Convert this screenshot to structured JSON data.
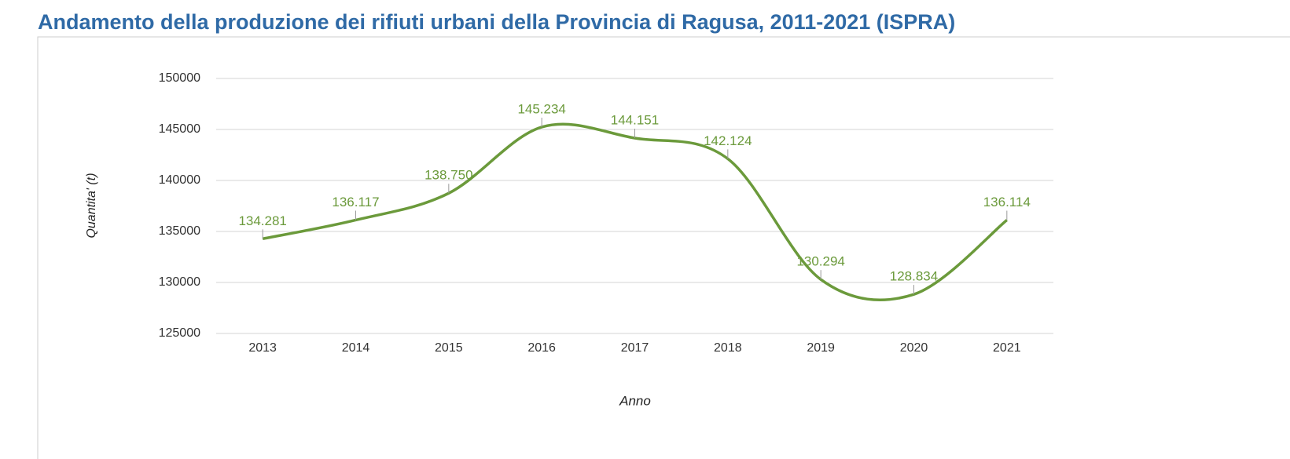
{
  "chart_data": {
    "type": "line",
    "title": "Andamento della produzione dei rifiuti urbani della Provincia di Ragusa, 2011-2021 (ISPRA)",
    "xlabel": "Anno",
    "ylabel": "Quantita' (t)",
    "categories": [
      "2013",
      "2014",
      "2015",
      "2016",
      "2017",
      "2018",
      "2019",
      "2020",
      "2021"
    ],
    "values": [
      134281,
      136117,
      138750,
      145234,
      144151,
      142124,
      130294,
      128834,
      136114
    ],
    "value_labels": [
      "134.281",
      "136.117",
      "138.750",
      "145.234",
      "144.151",
      "142.124",
      "130.294",
      "128.834",
      "136.114"
    ],
    "color": "#6b9a3b",
    "label_color": "#6b9a3b",
    "ylim": [
      125000,
      150000
    ],
    "yticks": [
      125000,
      130000,
      135000,
      140000,
      145000,
      150000
    ],
    "grid": true,
    "smooth": true
  }
}
